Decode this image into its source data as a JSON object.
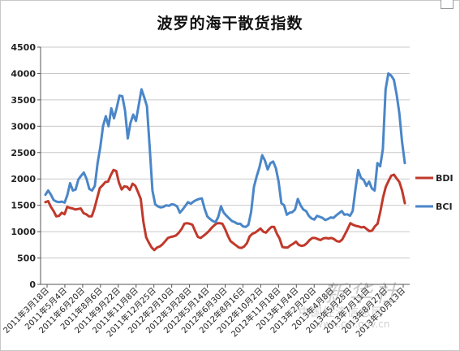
{
  "chart_data": {
    "type": "line",
    "title": "波罗的海干散货指数",
    "xlabel": "",
    "ylabel": "",
    "ylim": [
      0,
      4500
    ],
    "yticks": [
      0,
      500,
      1000,
      1500,
      2000,
      2500,
      3000,
      3500,
      4000,
      4500
    ],
    "grid": true,
    "legend": "right",
    "x_tick_labels": [
      "2011年3月18日",
      "2011年5月4日",
      "2011年6月20日",
      "2011年8月6日",
      "2011年9月22日",
      "2011年11月8日",
      "2011年12月25日",
      "2012年2月10日",
      "2012年3月28日",
      "2012年5月14日",
      "2012年6月30日",
      "2012年8月16日",
      "2012年10月2日",
      "2012年11月18日",
      "2013年1月4日",
      "2013年2月20日",
      "2013年4月8日",
      "2013年5月25日",
      "2013年7月11日",
      "2013年8月27日",
      "2013年10月13日"
    ],
    "series": [
      {
        "name": "BDI",
        "color": "#c0392b",
        "values": [
          1560,
          1580,
          1470,
          1390,
          1290,
          1300,
          1360,
          1330,
          1470,
          1450,
          1440,
          1420,
          1430,
          1440,
          1350,
          1330,
          1290,
          1290,
          1440,
          1640,
          1830,
          1880,
          1940,
          1950,
          2070,
          2170,
          2150,
          1930,
          1800,
          1860,
          1850,
          1790,
          1910,
          1870,
          1750,
          1620,
          1180,
          890,
          790,
          700,
          650,
          700,
          720,
          760,
          820,
          880,
          900,
          910,
          930,
          980,
          1050,
          1150,
          1160,
          1150,
          1130,
          1010,
          900,
          880,
          920,
          960,
          1010,
          1070,
          1120,
          1160,
          1160,
          1150,
          1050,
          920,
          820,
          780,
          740,
          700,
          690,
          720,
          780,
          910,
          960,
          980,
          1020,
          1060,
          1000,
          980,
          1040,
          1090,
          1090,
          960,
          870,
          710,
          700,
          700,
          740,
          770,
          810,
          750,
          730,
          740,
          780,
          840,
          880,
          880,
          860,
          840,
          870,
          880,
          870,
          880,
          860,
          820,
          810,
          850,
          950,
          1050,
          1160,
          1130,
          1110,
          1100,
          1080,
          1090,
          1050,
          1010,
          1020,
          1100,
          1150,
          1380,
          1650,
          1850,
          1960,
          2060,
          2080,
          2010,
          1940,
          1780,
          1540
        ]
      },
      {
        "name": "BCI",
        "color": "#4a86c8",
        "values": [
          1700,
          1780,
          1700,
          1600,
          1570,
          1560,
          1570,
          1550,
          1700,
          1920,
          1780,
          1800,
          1990,
          2060,
          2120,
          2000,
          1810,
          1780,
          1870,
          2300,
          2600,
          3000,
          3190,
          3000,
          3340,
          3150,
          3350,
          3580,
          3570,
          3300,
          2770,
          3060,
          3220,
          3100,
          3400,
          3700,
          3550,
          3380,
          2600,
          1780,
          1520,
          1480,
          1460,
          1470,
          1500,
          1490,
          1520,
          1510,
          1480,
          1360,
          1420,
          1490,
          1560,
          1530,
          1570,
          1600,
          1620,
          1630,
          1440,
          1290,
          1240,
          1200,
          1180,
          1280,
          1480,
          1360,
          1300,
          1250,
          1200,
          1180,
          1150,
          1150,
          1100,
          1090,
          1130,
          1380,
          1850,
          2050,
          2220,
          2450,
          2350,
          2180,
          2300,
          2330,
          2200,
          1950,
          1540,
          1500,
          1320,
          1360,
          1370,
          1420,
          1620,
          1500,
          1420,
          1390,
          1300,
          1250,
          1230,
          1300,
          1280,
          1260,
          1220,
          1240,
          1270,
          1260,
          1310,
          1350,
          1390,
          1320,
          1330,
          1300,
          1390,
          1800,
          2170,
          2020,
          1980,
          1870,
          1950,
          1820,
          1780,
          2300,
          2240,
          2560,
          3700,
          4000,
          3960,
          3880,
          3600,
          3250,
          2700,
          2300
        ]
      }
    ]
  },
  "watermark": {
    "main": "新华社",
    "sub": "中国经济信息网",
    "url": "www.cei.gov.cn"
  }
}
